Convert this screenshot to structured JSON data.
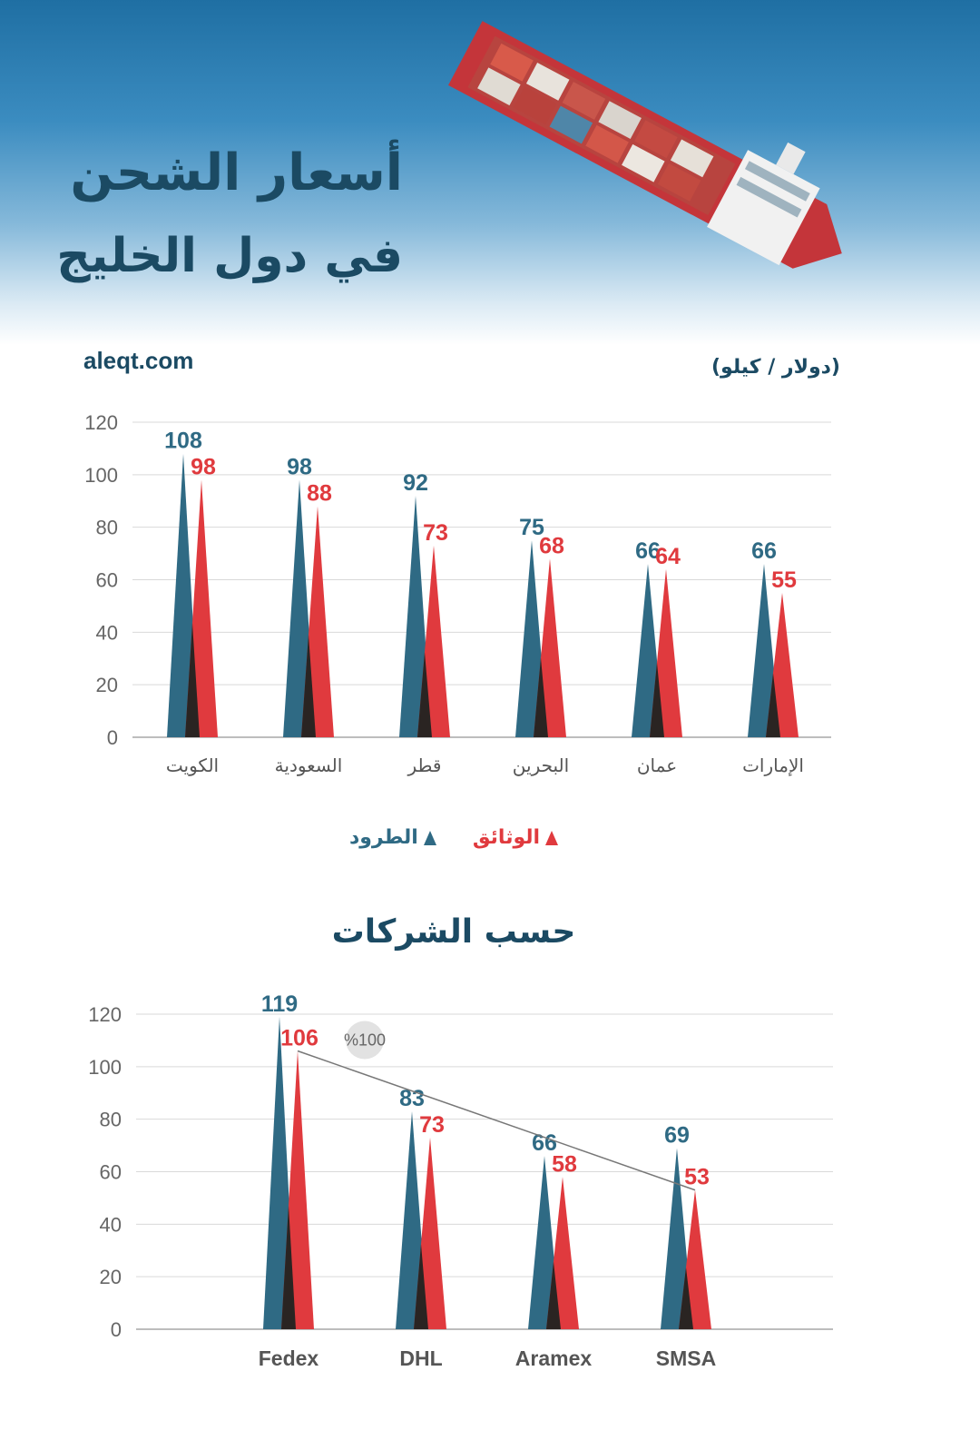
{
  "header": {
    "title_line1": "أسعار الشحن",
    "title_line2": "في دول الخليج"
  },
  "source": "aleqt.com",
  "unit": "(دولار / كيلو)",
  "colors": {
    "parcels": "#2f6a84",
    "documents": "#e03a3e",
    "title": "#1b4a63"
  },
  "legend": {
    "documents": "الوثائق",
    "parcels": "الطرود"
  },
  "section_title": "حسب الشركات",
  "chart_data": [
    {
      "type": "bar",
      "categories": [
        "الكويت",
        "السعودية",
        "قطر",
        "البحرين",
        "عمان",
        "الإمارات"
      ],
      "series": [
        {
          "name": "الطرود",
          "values": [
            108,
            98,
            92,
            75,
            66,
            66
          ]
        },
        {
          "name": "الوثائق",
          "values": [
            98,
            88,
            73,
            68,
            64,
            55
          ]
        }
      ],
      "ylim": [
        0,
        120
      ],
      "yticks": [
        0,
        20,
        40,
        60,
        80,
        100,
        120
      ],
      "grid": true
    },
    {
      "type": "bar",
      "categories": [
        "Fedex",
        "DHL",
        "Aramex",
        "SMSA"
      ],
      "series": [
        {
          "name": "الطرود",
          "values": [
            119,
            83,
            66,
            69
          ]
        },
        {
          "name": "الوثائق",
          "values": [
            106,
            73,
            58,
            53
          ]
        }
      ],
      "ylim": [
        0,
        120
      ],
      "yticks": [
        0,
        20,
        40,
        60,
        80,
        100,
        120
      ],
      "grid": true,
      "annotation": "%100"
    }
  ]
}
